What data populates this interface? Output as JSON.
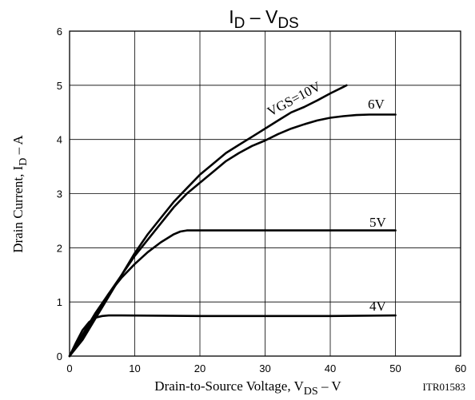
{
  "chart_data": {
    "type": "line",
    "title": {
      "main": "I",
      "main_sub": "D",
      "sep": " – ",
      "main2": "V",
      "main2_sub": "DS"
    },
    "xlabel": {
      "pre": "Drain-to-Source Voltage, V",
      "sub": "DS",
      "post": " – V"
    },
    "ylabel": {
      "pre": "Drain Current, I",
      "sub": "D",
      "post": " – A"
    },
    "code": "ITR01583",
    "xlim": [
      0,
      60
    ],
    "ylim": [
      0,
      6
    ],
    "xticks": [
      0,
      10,
      20,
      30,
      40,
      50,
      60
    ],
    "yticks": [
      0,
      1,
      2,
      3,
      4,
      5,
      6
    ],
    "xtick_labels": [
      "0",
      "10",
      "20",
      "30",
      "40",
      "50",
      "60"
    ],
    "ytick_labels": [
      "0",
      "1",
      "2",
      "3",
      "4",
      "5",
      "6"
    ],
    "grid": true,
    "series": [
      {
        "name": "VGS=10V",
        "label": "VGS=10V",
        "points": [
          [
            0,
            0
          ],
          [
            2,
            0.3
          ],
          [
            4,
            0.7
          ],
          [
            6,
            1.1
          ],
          [
            8,
            1.5
          ],
          [
            10,
            1.9
          ],
          [
            12,
            2.25
          ],
          [
            14,
            2.55
          ],
          [
            16,
            2.85
          ],
          [
            18,
            3.1
          ],
          [
            20,
            3.35
          ],
          [
            22,
            3.55
          ],
          [
            24,
            3.75
          ],
          [
            26,
            3.9
          ],
          [
            28,
            4.05
          ],
          [
            30,
            4.2
          ],
          [
            32,
            4.35
          ],
          [
            34,
            4.5
          ],
          [
            36,
            4.6
          ],
          [
            38,
            4.72
          ],
          [
            40,
            4.85
          ],
          [
            42,
            4.97
          ],
          [
            42.5,
            5.0
          ]
        ]
      },
      {
        "name": "6V",
        "label": "6V",
        "points": [
          [
            0,
            0
          ],
          [
            2,
            0.35
          ],
          [
            4,
            0.75
          ],
          [
            6,
            1.15
          ],
          [
            8,
            1.5
          ],
          [
            10,
            1.85
          ],
          [
            12,
            2.15
          ],
          [
            14,
            2.45
          ],
          [
            16,
            2.75
          ],
          [
            18,
            3.0
          ],
          [
            20,
            3.2
          ],
          [
            22,
            3.4
          ],
          [
            24,
            3.6
          ],
          [
            26,
            3.75
          ],
          [
            28,
            3.88
          ],
          [
            30,
            3.98
          ],
          [
            32,
            4.1
          ],
          [
            34,
            4.2
          ],
          [
            36,
            4.28
          ],
          [
            38,
            4.35
          ],
          [
            40,
            4.4
          ],
          [
            42,
            4.43
          ],
          [
            44,
            4.45
          ],
          [
            46,
            4.46
          ],
          [
            48,
            4.46
          ],
          [
            50,
            4.46
          ]
        ]
      },
      {
        "name": "5V",
        "label": "5V",
        "points": [
          [
            0,
            0
          ],
          [
            2,
            0.4
          ],
          [
            4,
            0.8
          ],
          [
            6,
            1.15
          ],
          [
            8,
            1.45
          ],
          [
            10,
            1.7
          ],
          [
            12,
            1.92
          ],
          [
            14,
            2.1
          ],
          [
            16,
            2.25
          ],
          [
            17,
            2.3
          ],
          [
            18,
            2.32
          ],
          [
            20,
            2.32
          ],
          [
            30,
            2.32
          ],
          [
            40,
            2.32
          ],
          [
            50,
            2.32
          ]
        ]
      },
      {
        "name": "4V",
        "label": "4V",
        "points": [
          [
            0,
            0
          ],
          [
            1,
            0.25
          ],
          [
            2,
            0.48
          ],
          [
            3,
            0.63
          ],
          [
            4,
            0.71
          ],
          [
            5,
            0.74
          ],
          [
            6,
            0.75
          ],
          [
            8,
            0.75
          ],
          [
            20,
            0.74
          ],
          [
            30,
            0.74
          ],
          [
            40,
            0.74
          ],
          [
            50,
            0.75
          ]
        ]
      }
    ]
  }
}
